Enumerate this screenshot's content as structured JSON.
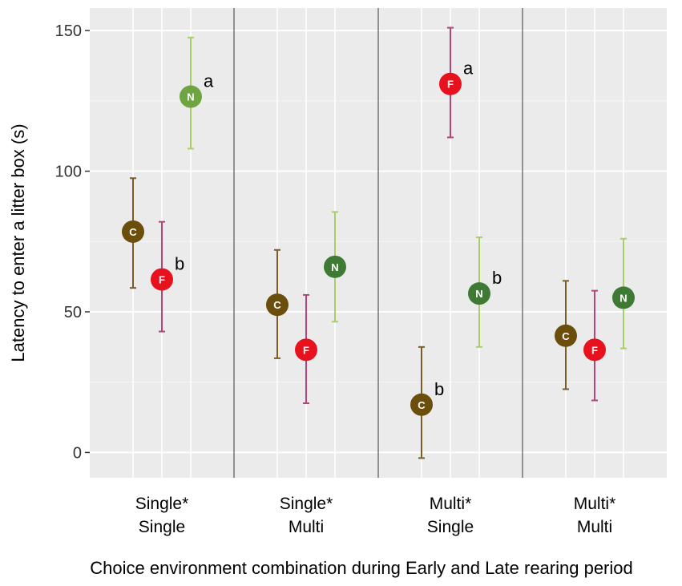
{
  "chart_data": {
    "type": "scatter",
    "ylabel": "Latency to enter a litter box (s)",
    "xlabel": "Choice environment combination during Early and Late rearing period",
    "ylim": [
      -9,
      158
    ],
    "yticks": [
      0,
      50,
      100,
      150
    ],
    "grid": true,
    "categories": [
      {
        "line1": "Single*",
        "line2": "Single"
      },
      {
        "line1": "Single*",
        "line2": "Multi"
      },
      {
        "line1": "Multi*",
        "line2": "Single"
      },
      {
        "line1": "Multi*",
        "line2": "Multi"
      }
    ],
    "series": [
      {
        "name": "C",
        "color": "#6b4e0b",
        "errorColor": "#7a5c28",
        "offset": -0.2,
        "values": [
          78.5,
          52.5,
          17,
          41.5
        ],
        "lower": [
          58.5,
          33.5,
          -2,
          22.5
        ],
        "upper": [
          97.5,
          72,
          37.5,
          61
        ],
        "labels": [
          "",
          "",
          "b",
          ""
        ]
      },
      {
        "name": "F",
        "color": "#e8121e",
        "errorColor": "#b2457a",
        "offset": 0,
        "values": [
          61.5,
          36.5,
          131,
          36.5
        ],
        "lower": [
          43,
          17.5,
          112,
          18.5
        ],
        "upper": [
          82,
          56,
          151,
          57.5
        ],
        "labels": [
          "b",
          "",
          "a",
          ""
        ]
      },
      {
        "name": "N",
        "colors": [
          "#6ea541",
          "#3f7a35",
          "#3f7a35",
          "#3f7a35"
        ],
        "errorColor": "#a8cf6a",
        "offset": 0.2,
        "values": [
          126.5,
          66,
          56.5,
          55
        ],
        "lower": [
          108,
          46.5,
          37.5,
          37
        ],
        "upper": [
          147.5,
          85.5,
          76.5,
          76
        ],
        "labels": [
          "a",
          "",
          "b",
          ""
        ]
      }
    ]
  }
}
